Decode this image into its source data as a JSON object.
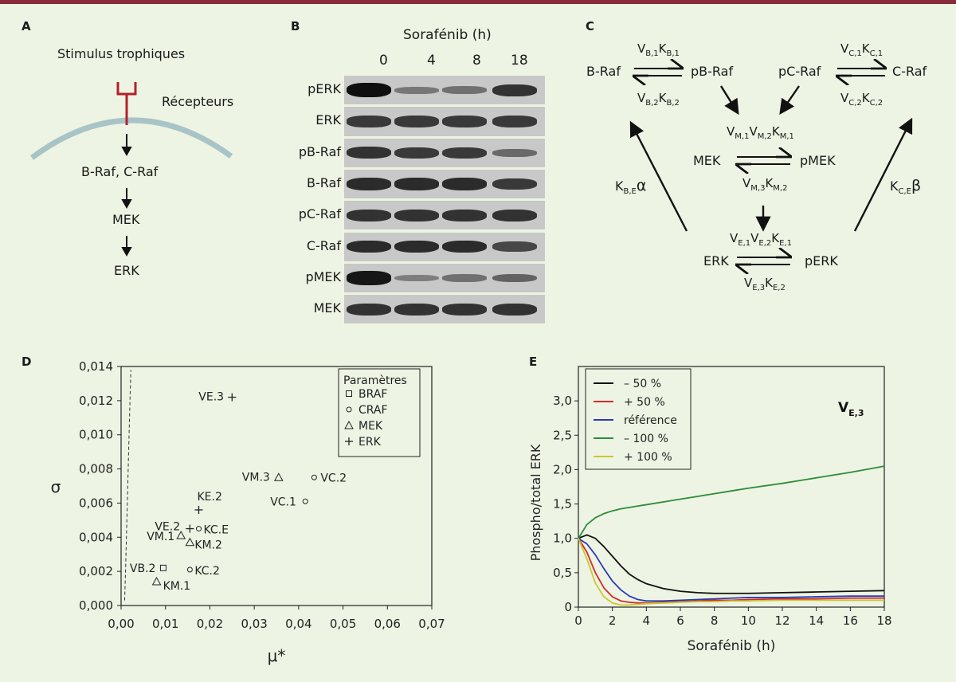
{
  "panels": {
    "a": "A",
    "b": "B",
    "c": "C",
    "d": "D",
    "e": "E"
  },
  "panel_a": {
    "stimulus": "Stimulus trophiques",
    "receptors": "Récepteurs",
    "steps": [
      "B-Raf, C-Raf",
      "MEK",
      "ERK"
    ]
  },
  "panel_b": {
    "drug": "Sorafénib (h)",
    "times": [
      "0",
      "4",
      "8",
      "18"
    ],
    "rows": [
      {
        "label": "pERK",
        "intensity": [
          1.0,
          0.25,
          0.3,
          0.75
        ]
      },
      {
        "label": "ERK",
        "intensity": [
          0.7,
          0.7,
          0.7,
          0.7
        ]
      },
      {
        "label": "pB-Raf",
        "intensity": [
          0.75,
          0.7,
          0.7,
          0.35
        ]
      },
      {
        "label": "B-Raf",
        "intensity": [
          0.8,
          0.8,
          0.8,
          0.7
        ]
      },
      {
        "label": "pC-Raf",
        "intensity": [
          0.75,
          0.75,
          0.75,
          0.75
        ]
      },
      {
        "label": "C-Raf",
        "intensity": [
          0.8,
          0.8,
          0.8,
          0.6
        ]
      },
      {
        "label": "pMEK",
        "intensity": [
          0.95,
          0.2,
          0.3,
          0.4
        ]
      },
      {
        "label": "MEK",
        "intensity": [
          0.75,
          0.75,
          0.75,
          0.75
        ]
      }
    ]
  },
  "panel_c": {
    "braf": "B-Raf",
    "pbraf": "pB-Raf",
    "pcraf": "pC-Raf",
    "craf": "C-Raf",
    "mek": "MEK",
    "pmek": "pMEK",
    "erk": "ERK",
    "perk": "pERK",
    "vb1": "V",
    "vb1s": "B,1",
    "kb1": "K",
    "kb1s": "B,1",
    "vb2": "V",
    "vb2s": "B,2",
    "kb2": "K",
    "kb2s": "B,2",
    "vc1": "V",
    "vc1s": "C,1",
    "kc1": "K",
    "kc1s": "C,1",
    "vc2": "V",
    "vc2s": "C,2",
    "kc2": "K",
    "kc2s": "C,2",
    "vm_top": "V",
    "vm_top_s1": "M,1",
    "vm_top2": "V",
    "vm_top_s2": "M,2",
    "km_top": "K",
    "km_top_s": "M,1",
    "vm_bot": "V",
    "vm_bot_s": "M,3",
    "km_bot": "K",
    "km_bot_s": "M,2",
    "ve_top": "V",
    "ve_top_s1": "E,1",
    "ve_top2": "V",
    "ve_top_s2": "E,2",
    "ke_top": "K",
    "ke_top_s": "E,1",
    "ve_bot": "V",
    "ve_bot_s": "E,3",
    "ke_bot": "K",
    "ke_bot_s": "E,2",
    "feed_b": "K",
    "feed_b_s": "B,E",
    "alpha": "α",
    "feed_c": "K",
    "feed_c_s": "C,E",
    "beta": "β"
  },
  "chart_data": [
    {
      "type": "scatter",
      "xlabel": "μ*",
      "ylabel": "σ",
      "xlim": [
        0,
        0.07
      ],
      "ylim": [
        0,
        0.014
      ],
      "xticks": [
        "0,00",
        "0,01",
        "0,02",
        "0,03",
        "0,04",
        "0,05",
        "0,06",
        "0,07"
      ],
      "yticks": [
        "0,000",
        "0,002",
        "0,004",
        "0,006",
        "0,008",
        "0,010",
        "0,012",
        "0,014"
      ],
      "legend": {
        "title": "Paramètres",
        "entries": [
          {
            "marker": "square",
            "label": "BRAF"
          },
          {
            "marker": "circle",
            "label": "CRAF"
          },
          {
            "marker": "triangle",
            "label": "MEK"
          },
          {
            "marker": "plus",
            "label": "ERK"
          }
        ],
        "placement": "top-right"
      },
      "points": [
        {
          "label": "VE.3",
          "x": 0.025,
          "y": 0.0122,
          "marker": "plus"
        },
        {
          "label": "VM.3",
          "x": 0.0355,
          "y": 0.0075,
          "marker": "triangle"
        },
        {
          "label": "VC.2",
          "x": 0.0435,
          "y": 0.0075,
          "marker": "circle"
        },
        {
          "label": "VC.1",
          "x": 0.0415,
          "y": 0.0061,
          "marker": "circle"
        },
        {
          "label": "KE.2",
          "x": 0.0175,
          "y": 0.0056,
          "marker": "plus"
        },
        {
          "label": "VE.2",
          "x": 0.0155,
          "y": 0.0045,
          "marker": "plus"
        },
        {
          "label": "KC.E",
          "x": 0.0175,
          "y": 0.0045,
          "marker": "circle"
        },
        {
          "label": "VM.1",
          "x": 0.0135,
          "y": 0.0041,
          "marker": "triangle"
        },
        {
          "label": "KM.2",
          "x": 0.0155,
          "y": 0.0037,
          "marker": "triangle"
        },
        {
          "label": "VB.2",
          "x": 0.0095,
          "y": 0.0022,
          "marker": "square"
        },
        {
          "label": "KC.2",
          "x": 0.0155,
          "y": 0.0021,
          "marker": "circle"
        },
        {
          "label": "KM.1",
          "x": 0.008,
          "y": 0.0014,
          "marker": "triangle"
        }
      ],
      "dashed_line": {
        "x": [
          0.0008,
          0.001,
          0.0012,
          0.0015,
          0.0018,
          0.002,
          0.0022
        ],
        "y": [
          0.0003,
          0.002,
          0.004,
          0.007,
          0.01,
          0.012,
          0.0138
        ]
      }
    },
    {
      "type": "line",
      "xlabel": "Sorafénib (h)",
      "ylabel": "Phospho/total ERK",
      "xlim": [
        0,
        18
      ],
      "ylim": [
        0,
        3.5
      ],
      "xticks": [
        "0",
        "2",
        "4",
        "6",
        "8",
        "10",
        "12",
        "14",
        "16",
        "18"
      ],
      "yticks": [
        "0",
        "0,5",
        "1,0",
        "1,5",
        "2,0",
        "2,5",
        "3,0"
      ],
      "annotation": "V",
      "annotation_sub": "E,3",
      "legend_placement": "top-left",
      "x": [
        0,
        0.5,
        1,
        1.5,
        2,
        2.5,
        3,
        3.5,
        4,
        5,
        6,
        7,
        8,
        9,
        10,
        12,
        14,
        16,
        18
      ],
      "series": [
        {
          "name": "– 50 %",
          "color": "#111111",
          "values": [
            1.0,
            1.05,
            1.0,
            0.88,
            0.74,
            0.6,
            0.48,
            0.4,
            0.34,
            0.27,
            0.23,
            0.21,
            0.2,
            0.2,
            0.2,
            0.21,
            0.22,
            0.23,
            0.24
          ]
        },
        {
          "name": "+ 50 %",
          "color": "#d42a2a",
          "values": [
            1.0,
            0.8,
            0.5,
            0.28,
            0.15,
            0.09,
            0.07,
            0.06,
            0.06,
            0.07,
            0.08,
            0.09,
            0.1,
            0.1,
            0.11,
            0.12,
            0.12,
            0.13,
            0.13
          ]
        },
        {
          "name": "référence",
          "color": "#2a3ab8",
          "values": [
            1.0,
            0.92,
            0.76,
            0.56,
            0.38,
            0.25,
            0.16,
            0.11,
            0.09,
            0.09,
            0.1,
            0.11,
            0.12,
            0.13,
            0.14,
            0.14,
            0.15,
            0.16,
            0.16
          ]
        },
        {
          "name": "– 100 %",
          "color": "#2e8b3a",
          "values": [
            1.0,
            1.2,
            1.3,
            1.36,
            1.4,
            1.43,
            1.45,
            1.47,
            1.49,
            1.53,
            1.57,
            1.61,
            1.65,
            1.69,
            1.73,
            1.8,
            1.88,
            1.96,
            2.05
          ]
        },
        {
          "name": "+ 100 %",
          "color": "#c8c830",
          "values": [
            1.0,
            0.7,
            0.35,
            0.15,
            0.06,
            0.03,
            0.03,
            0.04,
            0.05,
            0.06,
            0.07,
            0.08,
            0.08,
            0.09,
            0.09,
            0.1,
            0.1,
            0.1,
            0.1
          ]
        }
      ]
    }
  ]
}
